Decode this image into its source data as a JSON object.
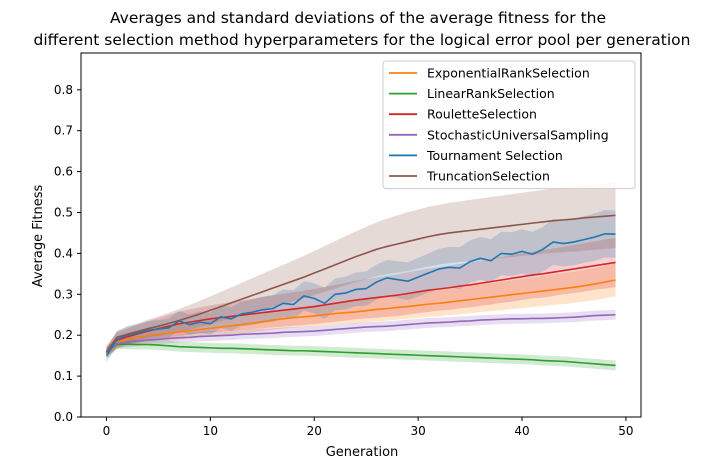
{
  "chart_data": {
    "type": "line",
    "title": [
      "Averages and standard deviations of the average fitness for the",
      "different selection method hyperparameters for the logical error pool per generation"
    ],
    "xlabel": "Generation",
    "ylabel": "Average Fitness",
    "xlim": [
      -2.45,
      51.45
    ],
    "ylim": [
      0.0,
      0.89
    ],
    "xticks": [
      0,
      10,
      20,
      30,
      40,
      50
    ],
    "yticks": [
      0.0,
      0.1,
      0.2,
      0.3,
      0.4,
      0.5,
      0.6,
      0.7,
      0.8
    ],
    "grid": false,
    "legend_position": "upper-right",
    "x": [
      0,
      1,
      2,
      3,
      4,
      5,
      6,
      7,
      8,
      9,
      10,
      11,
      12,
      13,
      14,
      15,
      16,
      17,
      18,
      19,
      20,
      21,
      22,
      23,
      24,
      25,
      26,
      27,
      28,
      29,
      30,
      31,
      32,
      33,
      34,
      35,
      36,
      37,
      38,
      39,
      40,
      41,
      42,
      43,
      44,
      45,
      46,
      47,
      48,
      49
    ],
    "series": [
      {
        "name": "ExponentialRankSelection",
        "color": "#ff7f0e",
        "values": [
          0.155,
          0.182,
          0.19,
          0.195,
          0.199,
          0.202,
          0.205,
          0.208,
          0.211,
          0.214,
          0.217,
          0.22,
          0.223,
          0.226,
          0.229,
          0.233,
          0.237,
          0.24,
          0.243,
          0.245,
          0.247,
          0.25,
          0.253,
          0.255,
          0.257,
          0.26,
          0.263,
          0.265,
          0.268,
          0.27,
          0.273,
          0.276,
          0.278,
          0.281,
          0.284,
          0.287,
          0.29,
          0.293,
          0.296,
          0.299,
          0.302,
          0.305,
          0.308,
          0.311,
          0.314,
          0.317,
          0.321,
          0.325,
          0.33,
          0.335
        ],
        "std": [
          0.012,
          0.015,
          0.016,
          0.017,
          0.018,
          0.018,
          0.019,
          0.019,
          0.02,
          0.02,
          0.021,
          0.021,
          0.022,
          0.022,
          0.023,
          0.023,
          0.024,
          0.024,
          0.025,
          0.025,
          0.026,
          0.026,
          0.027,
          0.027,
          0.028,
          0.028,
          0.029,
          0.029,
          0.03,
          0.03,
          0.031,
          0.031,
          0.032,
          0.032,
          0.033,
          0.033,
          0.034,
          0.034,
          0.035,
          0.035,
          0.036,
          0.036,
          0.037,
          0.037,
          0.038,
          0.038,
          0.039,
          0.039,
          0.04,
          0.04
        ]
      },
      {
        "name": "LinearRankSelection",
        "color": "#2ca02c",
        "values": [
          0.16,
          0.178,
          0.178,
          0.177,
          0.177,
          0.176,
          0.174,
          0.172,
          0.171,
          0.17,
          0.169,
          0.168,
          0.168,
          0.167,
          0.166,
          0.165,
          0.164,
          0.163,
          0.162,
          0.162,
          0.161,
          0.16,
          0.159,
          0.158,
          0.157,
          0.156,
          0.155,
          0.154,
          0.153,
          0.152,
          0.151,
          0.15,
          0.149,
          0.148,
          0.147,
          0.146,
          0.145,
          0.144,
          0.143,
          0.142,
          0.141,
          0.14,
          0.138,
          0.137,
          0.136,
          0.134,
          0.132,
          0.13,
          0.128,
          0.126
        ],
        "std": [
          0.012,
          0.012,
          0.012,
          0.012,
          0.012,
          0.012,
          0.012,
          0.012,
          0.012,
          0.012,
          0.012,
          0.012,
          0.012,
          0.012,
          0.012,
          0.012,
          0.012,
          0.012,
          0.012,
          0.012,
          0.012,
          0.012,
          0.012,
          0.012,
          0.012,
          0.012,
          0.012,
          0.012,
          0.012,
          0.012,
          0.012,
          0.012,
          0.012,
          0.012,
          0.012,
          0.012,
          0.012,
          0.012,
          0.012,
          0.012,
          0.012,
          0.012,
          0.012,
          0.012,
          0.012,
          0.012,
          0.012,
          0.012,
          0.012,
          0.012
        ]
      },
      {
        "name": "RouletteSelection",
        "color": "#d62728",
        "values": [
          0.16,
          0.188,
          0.196,
          0.203,
          0.21,
          0.216,
          0.222,
          0.228,
          0.232,
          0.236,
          0.24,
          0.243,
          0.246,
          0.249,
          0.252,
          0.255,
          0.258,
          0.261,
          0.264,
          0.267,
          0.27,
          0.274,
          0.278,
          0.282,
          0.286,
          0.289,
          0.292,
          0.295,
          0.298,
          0.302,
          0.306,
          0.31,
          0.313,
          0.316,
          0.32,
          0.323,
          0.327,
          0.331,
          0.335,
          0.339,
          0.343,
          0.347,
          0.35,
          0.354,
          0.358,
          0.362,
          0.366,
          0.37,
          0.374,
          0.378
        ],
        "std": [
          0.015,
          0.018,
          0.02,
          0.022,
          0.024,
          0.026,
          0.028,
          0.03,
          0.031,
          0.032,
          0.033,
          0.034,
          0.035,
          0.036,
          0.037,
          0.038,
          0.039,
          0.04,
          0.041,
          0.042,
          0.043,
          0.044,
          0.045,
          0.046,
          0.047,
          0.048,
          0.049,
          0.05,
          0.051,
          0.052,
          0.052,
          0.053,
          0.053,
          0.054,
          0.054,
          0.055,
          0.055,
          0.056,
          0.056,
          0.057,
          0.057,
          0.057,
          0.058,
          0.058,
          0.058,
          0.059,
          0.059,
          0.059,
          0.06,
          0.06
        ]
      },
      {
        "name": "StochasticUniversalSampling",
        "color": "#9467bd",
        "values": [
          0.16,
          0.18,
          0.183,
          0.186,
          0.188,
          0.19,
          0.192,
          0.194,
          0.195,
          0.197,
          0.198,
          0.199,
          0.2,
          0.202,
          0.203,
          0.204,
          0.205,
          0.207,
          0.208,
          0.209,
          0.21,
          0.212,
          0.214,
          0.216,
          0.218,
          0.22,
          0.221,
          0.222,
          0.224,
          0.226,
          0.228,
          0.23,
          0.231,
          0.232,
          0.234,
          0.235,
          0.237,
          0.238,
          0.239,
          0.24,
          0.24,
          0.241,
          0.241,
          0.242,
          0.243,
          0.244,
          0.246,
          0.248,
          0.249,
          0.25
        ],
        "std": [
          0.01,
          0.012,
          0.012,
          0.012,
          0.012,
          0.012,
          0.012,
          0.012,
          0.012,
          0.012,
          0.012,
          0.012,
          0.012,
          0.012,
          0.012,
          0.012,
          0.012,
          0.012,
          0.012,
          0.012,
          0.012,
          0.012,
          0.012,
          0.012,
          0.012,
          0.012,
          0.012,
          0.012,
          0.012,
          0.012,
          0.012,
          0.012,
          0.012,
          0.012,
          0.012,
          0.012,
          0.012,
          0.012,
          0.012,
          0.012,
          0.012,
          0.012,
          0.012,
          0.012,
          0.012,
          0.012,
          0.012,
          0.012,
          0.012,
          0.012
        ]
      },
      {
        "name": "Tournament Selection",
        "color": "#1f77b4",
        "values": [
          0.15,
          0.19,
          0.2,
          0.205,
          0.212,
          0.215,
          0.218,
          0.235,
          0.226,
          0.232,
          0.228,
          0.245,
          0.24,
          0.252,
          0.256,
          0.262,
          0.265,
          0.278,
          0.275,
          0.296,
          0.29,
          0.278,
          0.3,
          0.303,
          0.312,
          0.314,
          0.33,
          0.34,
          0.336,
          0.332,
          0.342,
          0.352,
          0.362,
          0.366,
          0.364,
          0.38,
          0.388,
          0.382,
          0.4,
          0.398,
          0.405,
          0.398,
          0.41,
          0.428,
          0.424,
          0.428,
          0.434,
          0.44,
          0.448,
          0.447
        ],
        "std": [
          0.015,
          0.02,
          0.022,
          0.022,
          0.022,
          0.022,
          0.023,
          0.024,
          0.025,
          0.026,
          0.027,
          0.028,
          0.029,
          0.03,
          0.031,
          0.032,
          0.033,
          0.034,
          0.035,
          0.036,
          0.037,
          0.038,
          0.039,
          0.04,
          0.041,
          0.042,
          0.043,
          0.044,
          0.045,
          0.046,
          0.047,
          0.048,
          0.049,
          0.05,
          0.051,
          0.052,
          0.052,
          0.053,
          0.053,
          0.054,
          0.054,
          0.055,
          0.055,
          0.056,
          0.056,
          0.057,
          0.057,
          0.058,
          0.058,
          0.058
        ]
      },
      {
        "name": "TruncationSelection",
        "color": "#8c564b",
        "values": [
          0.158,
          0.195,
          0.202,
          0.209,
          0.216,
          0.222,
          0.229,
          0.236,
          0.244,
          0.252,
          0.261,
          0.27,
          0.279,
          0.288,
          0.297,
          0.306,
          0.315,
          0.324,
          0.333,
          0.342,
          0.352,
          0.362,
          0.372,
          0.382,
          0.392,
          0.401,
          0.41,
          0.417,
          0.423,
          0.429,
          0.435,
          0.441,
          0.446,
          0.45,
          0.453,
          0.456,
          0.459,
          0.462,
          0.465,
          0.468,
          0.471,
          0.474,
          0.477,
          0.48,
          0.482,
          0.484,
          0.487,
          0.489,
          0.491,
          0.493
        ],
        "std": [
          0.012,
          0.015,
          0.018,
          0.02,
          0.022,
          0.024,
          0.026,
          0.028,
          0.03,
          0.032,
          0.034,
          0.036,
          0.038,
          0.04,
          0.042,
          0.044,
          0.046,
          0.048,
          0.05,
          0.052,
          0.054,
          0.056,
          0.058,
          0.06,
          0.062,
          0.064,
          0.066,
          0.068,
          0.07,
          0.072,
          0.072,
          0.073,
          0.073,
          0.074,
          0.074,
          0.075,
          0.075,
          0.076,
          0.076,
          0.077,
          0.077,
          0.078,
          0.078,
          0.079,
          0.079,
          0.08,
          0.08,
          0.08,
          0.08,
          0.08
        ]
      }
    ]
  }
}
